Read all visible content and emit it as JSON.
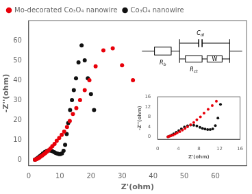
{
  "chart_data": [
    {
      "type": "scatter",
      "xlabel": "Z'(ohm)",
      "ylabel": "-Z''(ohm)",
      "xlim": [
        0,
        70
      ],
      "ylim": [
        -3,
        70
      ],
      "xticks": [
        0,
        10,
        20,
        30,
        40,
        50,
        60
      ],
      "yticks": [
        0,
        10,
        20,
        30,
        40,
        50,
        60
      ],
      "grid": false,
      "legend": "upper left",
      "series": [
        {
          "name": "Mo-decorated Co₃O₄ nanowire",
          "color": "#e8000a",
          "marker": "o",
          "x": [
            2.0,
            2.3,
            2.6,
            3.0,
            3.4,
            3.8,
            4.3,
            4.8,
            5.3,
            5.8,
            6.4,
            7.0,
            7.6,
            8.3,
            9.0,
            9.8,
            10.6,
            11.4,
            12.3,
            13.2,
            14.2,
            15.3,
            16.5,
            18.0,
            19.5,
            21.5,
            24.0,
            27.0,
            30.0,
            33.5
          ],
          "values": [
            0.0,
            0.2,
            0.4,
            0.7,
            1.1,
            1.6,
            2.1,
            2.7,
            3.3,
            4.0,
            4.8,
            5.7,
            6.8,
            8.0,
            9.5,
            11.0,
            12.5,
            14.2,
            16.5,
            19.5,
            23.0,
            26.0,
            30.0,
            35.0,
            40.0,
            47.0,
            55.0,
            56.0,
            47.5,
            40.0
          ]
        },
        {
          "name": "Co₃O₄ nanowire",
          "color": "#111111",
          "marker": "o",
          "x": [
            2.0,
            2.3,
            2.7,
            3.1,
            3.6,
            4.1,
            4.6,
            5.2,
            5.8,
            6.4,
            7.0,
            7.6,
            8.2,
            8.7,
            9.2,
            9.7,
            10.2,
            10.7,
            11.2,
            11.7,
            12.2,
            12.7,
            13.3,
            13.9,
            14.5,
            15.2,
            16.0,
            17.0,
            18.0,
            19.0,
            20.0,
            21.0
          ],
          "values": [
            0.0,
            0.3,
            0.7,
            1.2,
            1.8,
            2.5,
            3.2,
            3.9,
            4.4,
            4.7,
            4.6,
            4.3,
            3.8,
            3.4,
            3.1,
            2.9,
            2.9,
            3.2,
            4.5,
            7.5,
            13.0,
            18.5,
            25.0,
            30.0,
            35.0,
            41.0,
            49.0,
            57.5,
            50.0,
            41.0,
            33.0,
            25.0
          ]
        }
      ],
      "annotations": [
        "Rb",
        "Cdl",
        "Rct",
        "W"
      ]
    },
    {
      "type": "scatter",
      "xlabel": "Z'(ohm)",
      "ylabel": "-Z''(ohm)",
      "xlim": [
        0,
        16
      ],
      "ylim": [
        -1,
        16
      ],
      "xticks": [
        0,
        4,
        8,
        12,
        16
      ],
      "yticks": [
        0,
        4,
        8,
        12,
        16
      ],
      "grid": false,
      "series": [
        {
          "color": "#e8000a",
          "marker": "o",
          "x": [
            2.0,
            2.3,
            2.6,
            3.0,
            3.4,
            3.8,
            4.3,
            4.8,
            5.3,
            5.8,
            6.4,
            7.0,
            7.6,
            8.3,
            9.0,
            9.8,
            10.6,
            11.4
          ],
          "values": [
            0.0,
            0.2,
            0.4,
            0.7,
            1.1,
            1.6,
            2.1,
            2.7,
            3.3,
            4.0,
            4.8,
            5.7,
            6.8,
            8.0,
            9.5,
            11.0,
            12.5,
            14.2
          ]
        },
        {
          "color": "#111111",
          "marker": "o",
          "x": [
            2.0,
            2.3,
            2.7,
            3.1,
            3.6,
            4.1,
            4.6,
            5.2,
            5.8,
            6.4,
            7.0,
            7.6,
            8.2,
            8.7,
            9.2,
            9.7,
            10.2,
            10.7,
            11.2,
            11.7,
            12.2
          ],
          "values": [
            0.0,
            0.3,
            0.7,
            1.2,
            1.8,
            2.5,
            3.2,
            3.9,
            4.4,
            4.7,
            4.6,
            4.3,
            3.8,
            3.4,
            3.1,
            2.9,
            2.9,
            3.2,
            4.5,
            7.5,
            13.0
          ]
        }
      ]
    }
  ]
}
